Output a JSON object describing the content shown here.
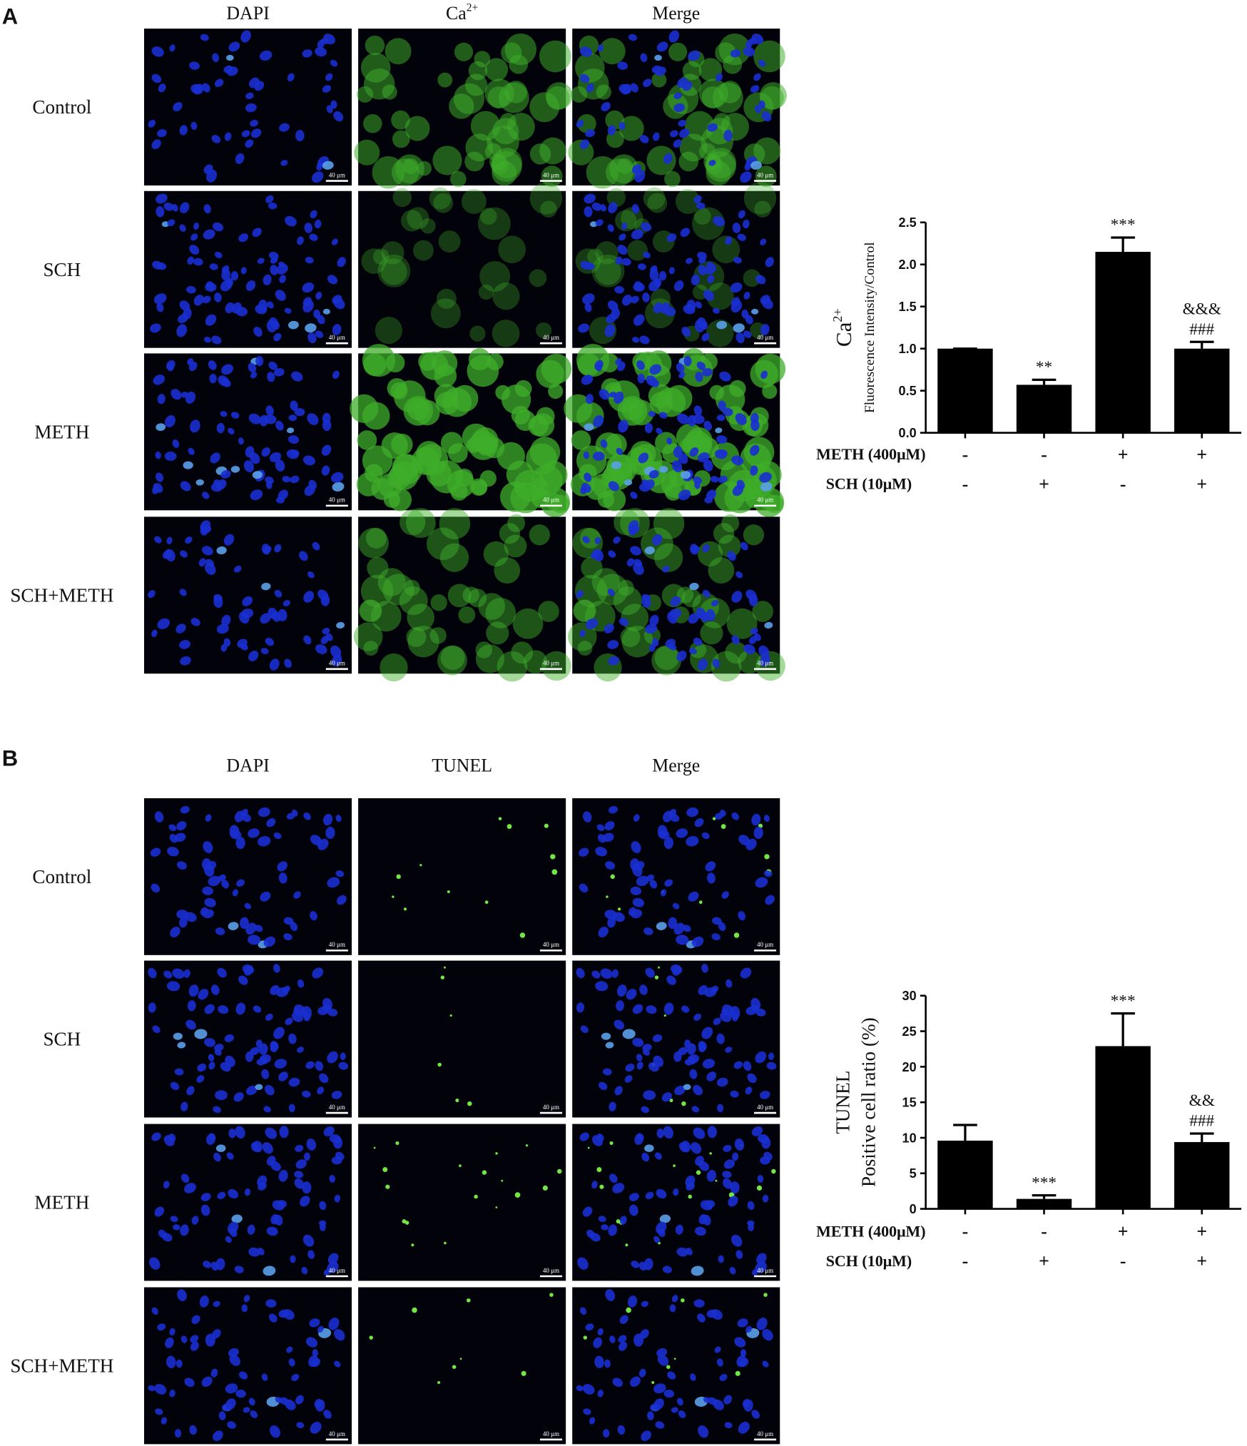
{
  "panels": [
    {
      "label": "A",
      "columns": [
        {
          "text": "DAPI"
        },
        {
          "text": "Ca",
          "superscript": "2+"
        },
        {
          "text": "Merge"
        }
      ],
      "rows": [
        "Control",
        "SCH",
        "METH",
        "SCH+METH"
      ],
      "scale_bar": "40 μm"
    },
    {
      "label": "B",
      "columns": [
        {
          "text": "DAPI"
        },
        {
          "text": "TUNEL"
        },
        {
          "text": "Merge"
        }
      ],
      "rows": [
        "Control",
        "SCH",
        "METH",
        "SCH+METH"
      ],
      "scale_bar": "40 μm"
    }
  ],
  "chart_data": [
    {
      "type": "bar",
      "ylabel": {
        "text": "Ca",
        "superscript": "2+",
        "line2": "Fluorescence Intensity/Control"
      },
      "values": [
        1.0,
        0.57,
        2.15,
        1.0
      ],
      "errors": [
        0,
        0.06,
        0.17,
        0.08
      ],
      "color": "#000000",
      "ylim": [
        0,
        2.5
      ],
      "yticks": [
        {
          "value": 0,
          "label": "0.0"
        },
        0.5,
        {
          "value": 1,
          "label": "1.0"
        },
        1.5,
        {
          "value": 2,
          "label": "2.0"
        },
        2.5
      ],
      "annotations": [
        [],
        [
          "**"
        ],
        [
          "***"
        ],
        [
          "&&&",
          "###"
        ]
      ],
      "treatments": [
        {
          "name": "METH (400μM)",
          "signs": [
            "-",
            "-",
            "+",
            "+"
          ]
        },
        {
          "name": "SCH (10μM)",
          "signs": [
            "-",
            "+",
            "-",
            "+"
          ]
        }
      ]
    },
    {
      "type": "bar",
      "ylabel": {
        "text": "TUNEL",
        "line2": "Positive cell ratio (%)"
      },
      "values": [
        9.6,
        1.4,
        22.9,
        9.4
      ],
      "errors": [
        2.2,
        0.5,
        4.6,
        1.2
      ],
      "color": "#000000",
      "ylim": [
        0,
        30
      ],
      "yticks": [
        0,
        5,
        10,
        15,
        20,
        25,
        30
      ],
      "annotations": [
        [],
        [
          "***"
        ],
        [
          "***"
        ],
        [
          "&&",
          "###"
        ]
      ],
      "treatments": [
        {
          "name": "METH (400μM)",
          "signs": [
            "-",
            "-",
            "+",
            "+"
          ]
        },
        {
          "name": "SCH (10μM)",
          "signs": [
            "-",
            "+",
            "-",
            "+"
          ]
        }
      ]
    }
  ]
}
